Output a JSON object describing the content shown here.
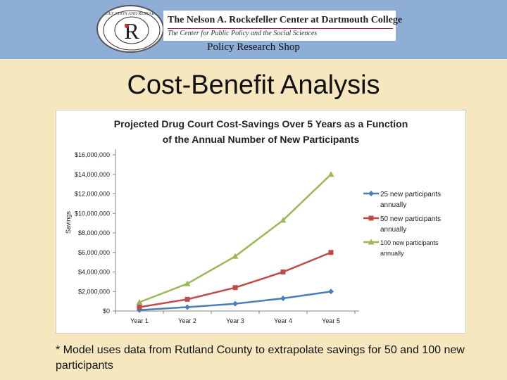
{
  "header": {
    "seal_text": "EDUCATION AND RESEARCH",
    "seal_letter": "R",
    "org_name": "The Nelson A. Rockefeller Center at Dartmouth College",
    "org_subtitle": "The Center for Public Policy and the Social Sciences",
    "unit": "Policy Research Shop"
  },
  "slide": {
    "title": "Cost-Benefit Analysis"
  },
  "footnote": "* Model uses data from Rutland County to extrapolate savings for 50 and 100 new participants",
  "colors": {
    "header_bg": "#8eaed6",
    "slide_bg": "#f6e7bf",
    "series": [
      "#4a7ebb",
      "#be4b48",
      "#98b954"
    ]
  },
  "chart_data": {
    "type": "line",
    "title_lines": [
      "Projected Drug Court Cost-Savings Over 5 Years as a Function",
      "of the Annual Number of New Participants"
    ],
    "xlabel": "",
    "ylabel": "Savings",
    "categories": [
      "Year 1",
      "Year 2",
      "Year 3",
      "Year 4",
      "Year 5"
    ],
    "ylim": [
      0,
      16000000
    ],
    "yticks": [
      0,
      2000000,
      4000000,
      6000000,
      8000000,
      10000000,
      12000000,
      14000000,
      16000000
    ],
    "ytick_labels": [
      "$0",
      "$2,000,000",
      "$4,000,000",
      "$6,000,000",
      "$8,000,000",
      "$10,000,000",
      "$12,000,000",
      "$14,000,000",
      "$16,000,000"
    ],
    "grid": false,
    "legend_position": "right",
    "series": [
      {
        "name": "25 new participants annually",
        "legend_lines": [
          "25 new participants",
          "annually"
        ],
        "marker": "diamond",
        "color": "#4a7ebb",
        "values": [
          100000,
          400000,
          750000,
          1300000,
          2000000
        ]
      },
      {
        "name": "50 new participants annually",
        "legend_lines": [
          "50 new participants",
          "annually"
        ],
        "marker": "square",
        "color": "#be4b48",
        "values": [
          400000,
          1200000,
          2400000,
          4000000,
          6000000
        ]
      },
      {
        "name": "100 new participants annually",
        "legend_lines": [
          "100 new participants",
          "annually"
        ],
        "marker": "triangle",
        "color": "#98b954",
        "values": [
          900000,
          2800000,
          5600000,
          9300000,
          14000000
        ]
      }
    ]
  }
}
